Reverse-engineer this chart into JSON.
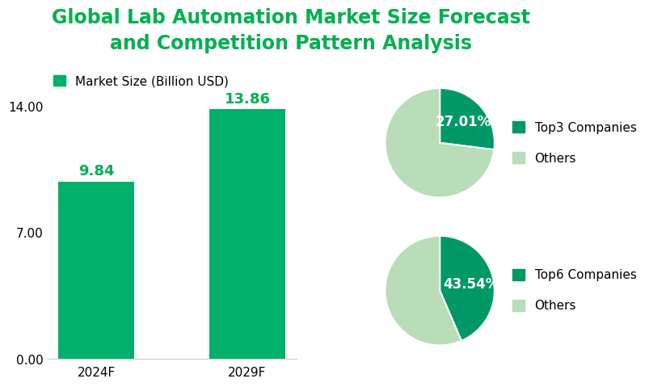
{
  "title": "Global Lab Automation Market Size Forecast\nand Competition Pattern Analysis",
  "title_color": "#00b050",
  "title_fontsize": 17,
  "bar_categories": [
    "2024F",
    "2029F"
  ],
  "bar_values": [
    9.84,
    13.86
  ],
  "bar_color": "#00b06b",
  "bar_legend_label": "Market Size (Billion USD)",
  "ylim": [
    0,
    15.8
  ],
  "yticks": [
    0.0,
    7.0,
    14.0
  ],
  "ytick_labels": [
    "0.00",
    "7.00",
    "14.00"
  ],
  "pie1_values": [
    27.01,
    72.99
  ],
  "pie1_colors": [
    "#009966",
    "#b8ddb8"
  ],
  "pie1_labels": [
    "27.01%",
    ""
  ],
  "pie1_legend": [
    "Top3 Companies",
    "Others"
  ],
  "pie1_startangle": 90,
  "pie2_values": [
    43.54,
    56.46
  ],
  "pie2_colors": [
    "#009966",
    "#b8ddb8"
  ],
  "pie2_labels": [
    "43.54%",
    ""
  ],
  "pie2_legend": [
    "Top6 Companies",
    "Others"
  ],
  "pie2_startangle": 90,
  "bg_color": "#ffffff",
  "label_color_green": "#00b050",
  "label_fontsize": 13,
  "pie_pct_fontsize": 12,
  "pie_pct_color": "#ffffff",
  "axis_tick_fontsize": 11,
  "legend_fontsize": 11
}
